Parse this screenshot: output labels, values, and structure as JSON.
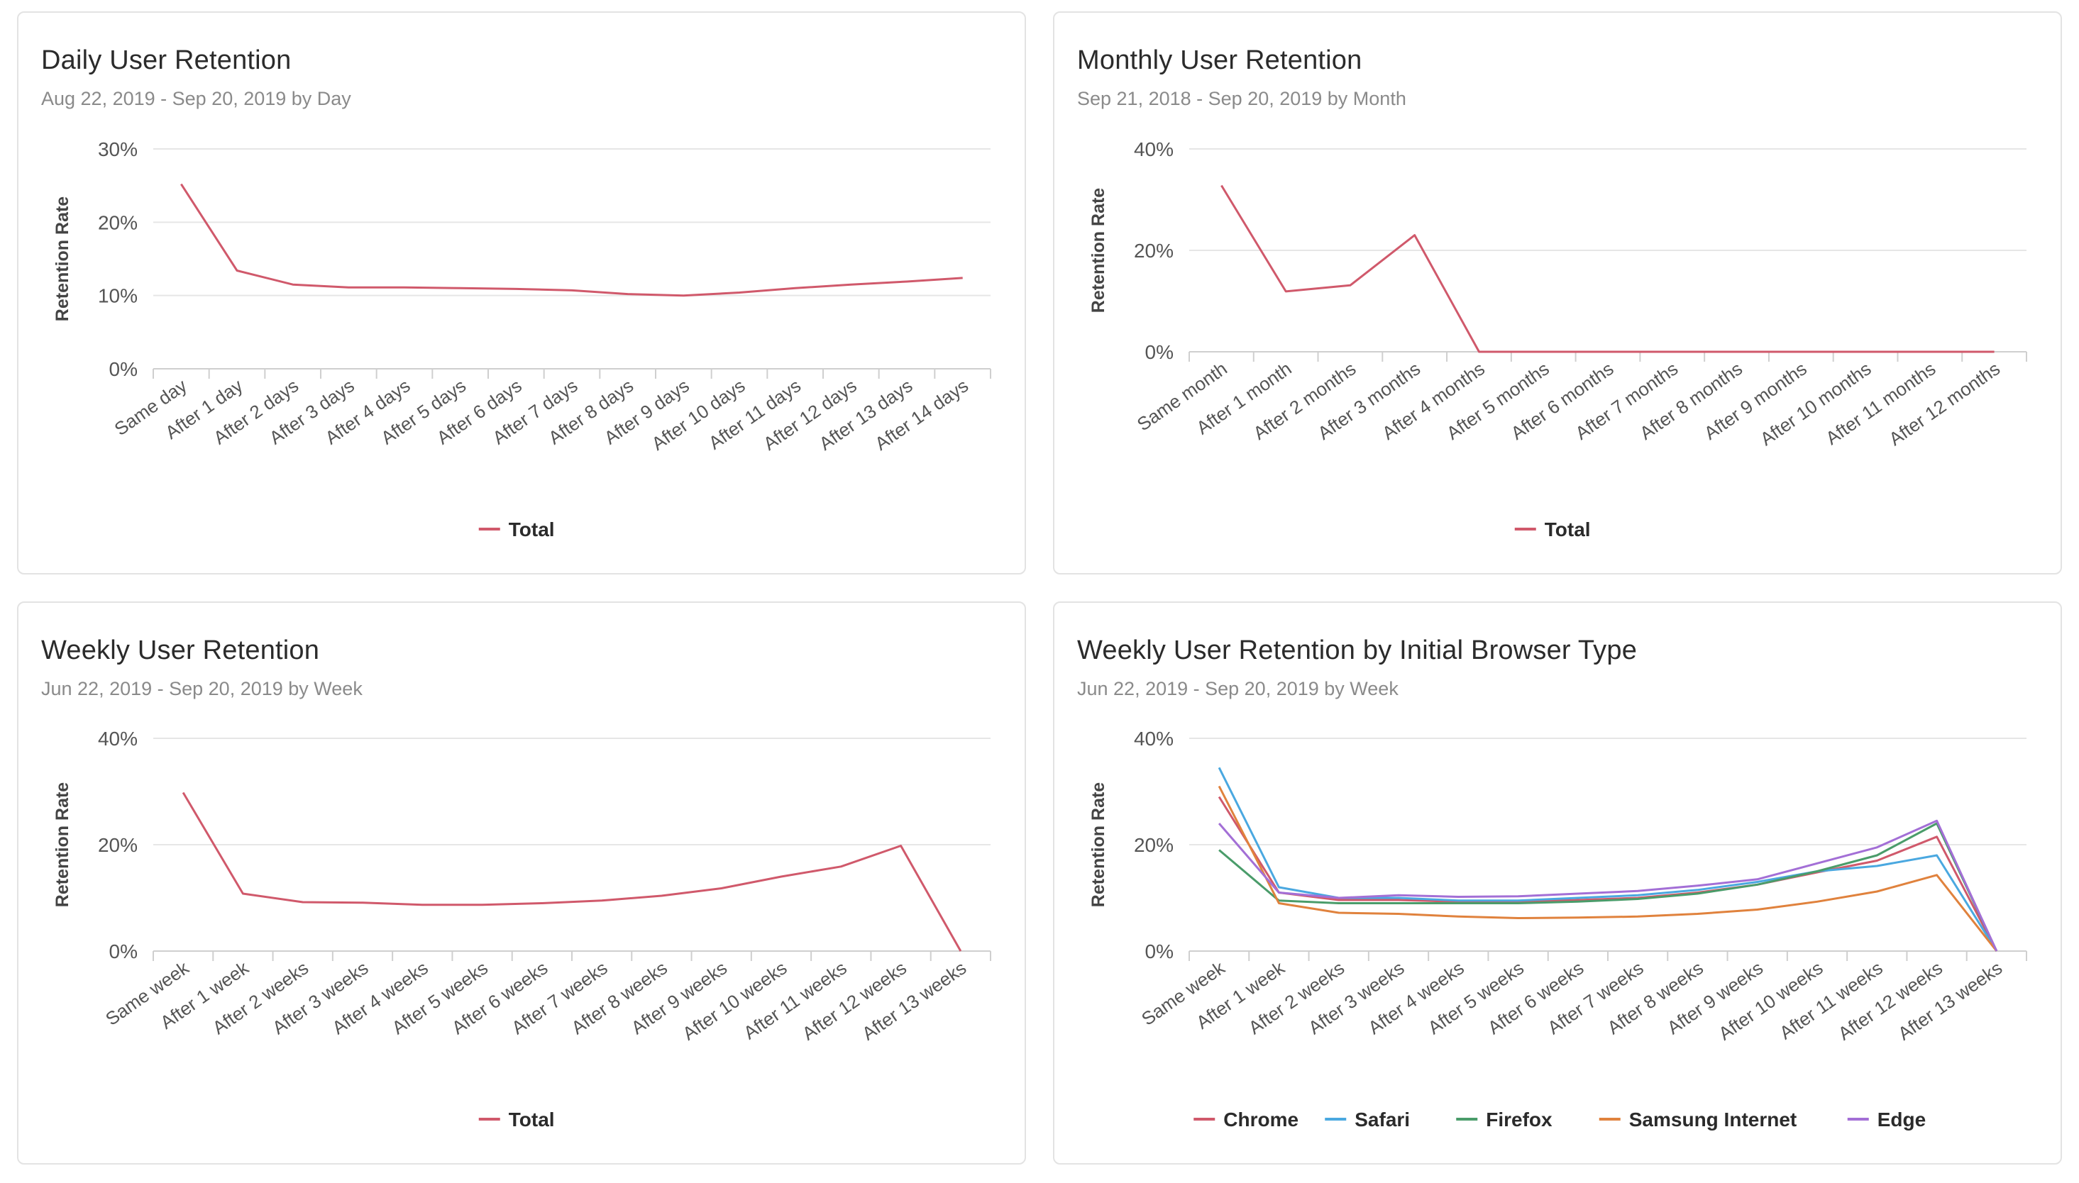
{
  "chart_data": [
    {
      "id": "daily",
      "type": "line",
      "title": "Daily User Retention",
      "subtitle": "Aug 22, 2019 - Sep 20, 2019 by Day",
      "ylabel": "Retention Rate",
      "ylim": [
        0,
        30
      ],
      "yticks": [
        0,
        10,
        20,
        30
      ],
      "ytick_labels": [
        "0%",
        "10%",
        "20%",
        "30%"
      ],
      "categories": [
        "Same day",
        "After 1 day",
        "After 2 days",
        "After 3 days",
        "After 4 days",
        "After 5 days",
        "After 6 days",
        "After 7 days",
        "After 8 days",
        "After 9 days",
        "After 10 days",
        "After 11 days",
        "After 12 days",
        "After 13 days",
        "After 14 days"
      ],
      "series": [
        {
          "name": "Total",
          "color": "#d0596b",
          "values": [
            25.2,
            13.4,
            11.5,
            11.1,
            11.1,
            11.0,
            10.9,
            10.7,
            10.2,
            10.0,
            10.4,
            11.0,
            11.5,
            11.9,
            12.4
          ]
        }
      ],
      "grid": true,
      "legend": "bottom-center"
    },
    {
      "id": "monthly",
      "type": "line",
      "title": "Monthly User Retention",
      "subtitle": "Sep 21, 2018 - Sep 20, 2019 by Month",
      "ylabel": "Retention Rate",
      "ylim": [
        0,
        40
      ],
      "yticks": [
        0,
        20,
        40
      ],
      "ytick_labels": [
        "0%",
        "20%",
        "40%"
      ],
      "categories": [
        "Same month",
        "After 1 month",
        "After 2 months",
        "After 3 months",
        "After 4 months",
        "After 5 months",
        "After 6 months",
        "After 7 months",
        "After 8 months",
        "After 9 months",
        "After 10 months",
        "After 11 months",
        "After 12 months"
      ],
      "series": [
        {
          "name": "Total",
          "color": "#d0596b",
          "values": [
            32.8,
            11.9,
            13.1,
            23.0,
            0,
            0,
            0,
            0,
            0,
            0,
            0,
            0,
            0
          ]
        }
      ],
      "grid": true,
      "legend": "bottom-center"
    },
    {
      "id": "weekly",
      "type": "line",
      "title": "Weekly User Retention",
      "subtitle": "Jun 22, 2019 - Sep 20, 2019 by Week",
      "ylabel": "Retention Rate",
      "ylim": [
        0,
        40
      ],
      "yticks": [
        0,
        20,
        40
      ],
      "ytick_labels": [
        "0%",
        "20%",
        "40%"
      ],
      "categories": [
        "Same week",
        "After 1 week",
        "After 2 weeks",
        "After 3 weeks",
        "After 4 weeks",
        "After 5 weeks",
        "After 6 weeks",
        "After 7 weeks",
        "After 8 weeks",
        "After 9 weeks",
        "After 10 weeks",
        "After 11 weeks",
        "After 12 weeks",
        "After 13 weeks"
      ],
      "series": [
        {
          "name": "Total",
          "color": "#d0596b",
          "values": [
            29.8,
            10.8,
            9.2,
            9.1,
            8.7,
            8.7,
            9.0,
            9.5,
            10.4,
            11.8,
            14.0,
            15.9,
            19.8,
            0
          ]
        }
      ],
      "grid": true,
      "legend": "bottom-center"
    },
    {
      "id": "browser",
      "type": "line",
      "title": "Weekly User Retention by Initial Browser Type",
      "subtitle": "Jun 22, 2019 - Sep 20, 2019 by Week",
      "ylabel": "Retention Rate",
      "ylim": [
        0,
        40
      ],
      "yticks": [
        0,
        20,
        40
      ],
      "ytick_labels": [
        "0%",
        "20%",
        "40%"
      ],
      "categories": [
        "Same week",
        "After 1 week",
        "After 2 weeks",
        "After 3 weeks",
        "After 4 weeks",
        "After 5 weeks",
        "After 6 weeks",
        "After 7 weeks",
        "After 8 weeks",
        "After 9 weeks",
        "After 10 weeks",
        "After 11 weeks",
        "After 12 weeks",
        "After 13 weeks"
      ],
      "series": [
        {
          "name": "Chrome",
          "color": "#d0596b",
          "values": [
            29.0,
            11.0,
            9.6,
            9.6,
            9.3,
            9.3,
            9.6,
            10.0,
            11.0,
            12.5,
            14.8,
            17.0,
            21.5,
            0
          ]
        },
        {
          "name": "Safari",
          "color": "#4aa8e0",
          "values": [
            34.5,
            12.0,
            10.0,
            10.0,
            9.5,
            9.5,
            10.0,
            10.5,
            11.5,
            13.0,
            15.0,
            16.0,
            18.0,
            0
          ]
        },
        {
          "name": "Firefox",
          "color": "#4a9c6a",
          "values": [
            19.0,
            9.5,
            9.0,
            9.0,
            9.0,
            9.0,
            9.3,
            9.8,
            10.8,
            12.5,
            15.0,
            18.0,
            24.0,
            0
          ]
        },
        {
          "name": "Samsung Internet",
          "color": "#e0823d",
          "values": [
            31.0,
            9.0,
            7.2,
            7.0,
            6.5,
            6.2,
            6.3,
            6.5,
            7.0,
            7.8,
            9.3,
            11.2,
            14.3,
            0
          ]
        },
        {
          "name": "Edge",
          "color": "#a36fd6",
          "values": [
            24.0,
            11.0,
            10.0,
            10.5,
            10.2,
            10.3,
            10.8,
            11.3,
            12.3,
            13.5,
            16.5,
            19.5,
            24.5,
            0
          ]
        }
      ],
      "grid": true,
      "legend": "bottom-center"
    }
  ]
}
